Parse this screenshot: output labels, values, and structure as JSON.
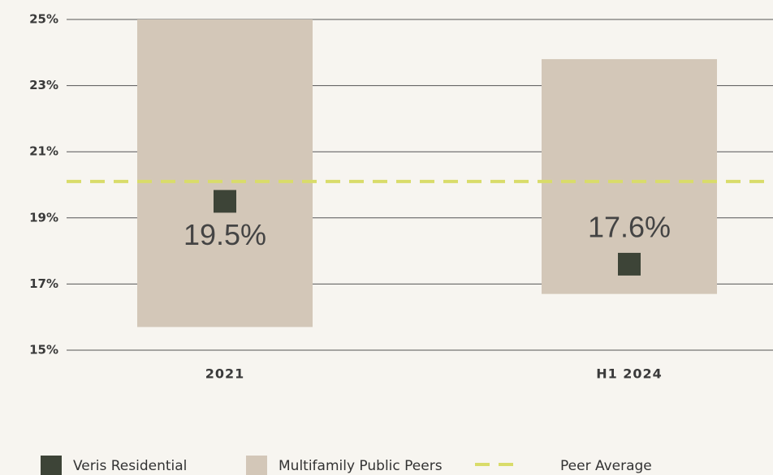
{
  "chart_data": {
    "type": "range_bar",
    "categories": [
      "2021",
      "H1 2024"
    ],
    "series": [
      {
        "name": "Multifamily Public Peers",
        "color": "#d3c7b8",
        "low": [
          15.7,
          16.7
        ],
        "high": [
          25,
          23.8
        ]
      },
      {
        "name": "Veris Residential",
        "color": "#3d4437",
        "values": [
          19.5,
          17.6
        ],
        "value_labels": [
          "19.5%",
          "17.6%"
        ]
      },
      {
        "name": "Peer Average",
        "color": "#d9dc6a",
        "value": 20.1
      }
    ],
    "ylim": [
      15,
      25
    ],
    "yticks": [
      {
        "value": 15,
        "label": "15%"
      },
      {
        "value": 17,
        "label": "17%"
      },
      {
        "value": 19,
        "label": "19%"
      },
      {
        "value": 21,
        "label": "21%"
      },
      {
        "value": 23,
        "label": "23%"
      },
      {
        "value": 25,
        "label": "25%"
      }
    ],
    "grid": true
  }
}
